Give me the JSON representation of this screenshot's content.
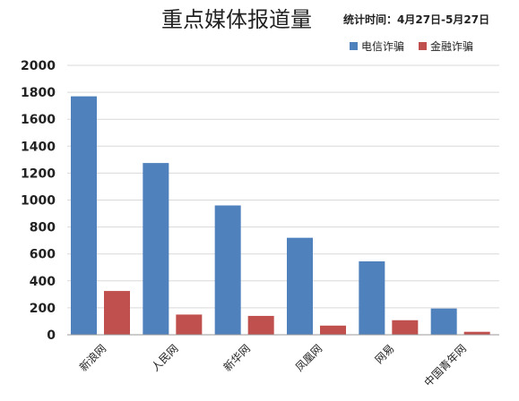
{
  "chart_data": {
    "type": "bar",
    "title": "重点媒体报道量",
    "subtitle": "统计时间：4月27日-5月27日",
    "categories": [
      "新浪网",
      "人民网",
      "新华网",
      "凤凰网",
      "网易",
      "中国青年网"
    ],
    "series": [
      {
        "name": "电信诈骗",
        "color": "#4f81bd",
        "values": [
          1770,
          1275,
          960,
          720,
          545,
          195
        ]
      },
      {
        "name": "金融诈骗",
        "color": "#c0504d",
        "values": [
          325,
          150,
          140,
          68,
          108,
          22
        ]
      }
    ],
    "ylim": [
      0,
      2000
    ],
    "yticks": [
      0,
      200,
      400,
      600,
      800,
      1000,
      1200,
      1400,
      1600,
      1800,
      2000
    ],
    "grid": true,
    "legend": "top-right",
    "xlabel": "",
    "ylabel": ""
  }
}
